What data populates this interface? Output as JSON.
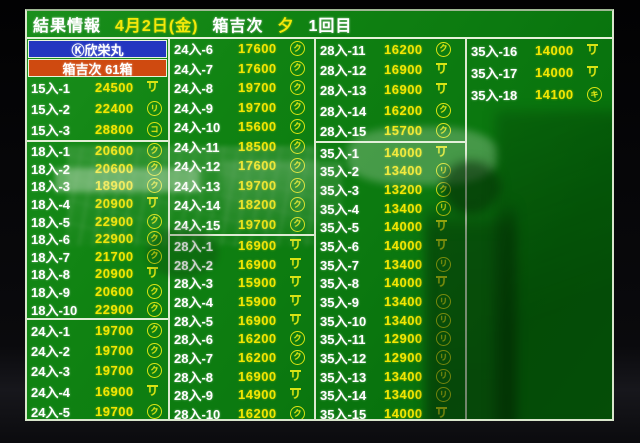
{
  "header": {
    "title": "結果情報",
    "date": "4月2日(金)",
    "vessel": "箱吉次",
    "session": "夕",
    "round": "1回目"
  },
  "banners": {
    "ship": "Ⓚ欣栄丸",
    "lot": "箱吉次 61箱"
  },
  "colors": {
    "board_green": "#0c7a10",
    "label_white": "#ffffff",
    "value_yellow": "#f2e602",
    "mark_yellow_green": "#d9e414",
    "banner_blue": "#2336c0",
    "banner_red": "#cf4a10",
    "grid_line": "#e2eed6"
  },
  "marks": {
    "circle-ku": {
      "shape": "circle",
      "glyph": "ク"
    },
    "circle-ri": {
      "shape": "circle",
      "glyph": "リ"
    },
    "circle-ko": {
      "shape": "circle",
      "glyph": "コ"
    },
    "circle-ki": {
      "shape": "circle",
      "glyph": "キ"
    },
    "bar-ri": {
      "shape": "overline",
      "glyph": "リ"
    }
  },
  "columns": [
    {
      "groups": [
        {
          "banners": true,
          "rows": [
            {
              "label": "15入-1",
              "value": "24500",
              "mark": "bar-ri"
            },
            {
              "label": "15入-2",
              "value": "22400",
              "mark": "circle-ri"
            },
            {
              "label": "15入-3",
              "value": "28800",
              "mark": "circle-ko"
            }
          ]
        },
        {
          "rows": [
            {
              "label": "18入-1",
              "value": "20600",
              "mark": "circle-ku"
            },
            {
              "label": "18入-2",
              "value": "20600",
              "mark": "circle-ku"
            },
            {
              "label": "18入-3",
              "value": "18900",
              "mark": "circle-ku"
            },
            {
              "label": "18入-4",
              "value": "20900",
              "mark": "bar-ri"
            },
            {
              "label": "18入-5",
              "value": "22900",
              "mark": "circle-ku"
            },
            {
              "label": "18入-6",
              "value": "22900",
              "mark": "circle-ku"
            },
            {
              "label": "18入-7",
              "value": "21700",
              "mark": "circle-ku"
            },
            {
              "label": "18入-8",
              "value": "20900",
              "mark": "bar-ri"
            },
            {
              "label": "18入-9",
              "value": "20600",
              "mark": "circle-ku"
            },
            {
              "label": "18入-10",
              "value": "22900",
              "mark": "circle-ku"
            }
          ]
        },
        {
          "rows": [
            {
              "label": "24入-1",
              "value": "19700",
              "mark": "circle-ku"
            },
            {
              "label": "24入-2",
              "value": "19700",
              "mark": "circle-ku"
            },
            {
              "label": "24入-3",
              "value": "19700",
              "mark": "circle-ku"
            },
            {
              "label": "24入-4",
              "value": "16900",
              "mark": "bar-ri"
            },
            {
              "label": "24入-5",
              "value": "19700",
              "mark": "circle-ku"
            }
          ]
        }
      ]
    },
    {
      "groups": [
        {
          "rows": [
            {
              "label": "24入-6",
              "value": "17600",
              "mark": "circle-ku"
            },
            {
              "label": "24入-7",
              "value": "17600",
              "mark": "circle-ku"
            },
            {
              "label": "24入-8",
              "value": "19700",
              "mark": "circle-ku"
            },
            {
              "label": "24入-9",
              "value": "19700",
              "mark": "circle-ku"
            },
            {
              "label": "24入-10",
              "value": "15600",
              "mark": "circle-ku"
            },
            {
              "label": "24入-11",
              "value": "18500",
              "mark": "circle-ku"
            },
            {
              "label": "24入-12",
              "value": "17600",
              "mark": "circle-ku"
            },
            {
              "label": "24入-13",
              "value": "19700",
              "mark": "circle-ku"
            },
            {
              "label": "24入-14",
              "value": "18200",
              "mark": "circle-ku"
            },
            {
              "label": "24入-15",
              "value": "19700",
              "mark": "circle-ku"
            }
          ]
        },
        {
          "rows": [
            {
              "label": "28入-1",
              "value": "16900",
              "mark": "bar-ri"
            },
            {
              "label": "28入-2",
              "value": "16900",
              "mark": "bar-ri"
            },
            {
              "label": "28入-3",
              "value": "15900",
              "mark": "bar-ri"
            },
            {
              "label": "28入-4",
              "value": "15900",
              "mark": "bar-ri"
            },
            {
              "label": "28入-5",
              "value": "16900",
              "mark": "bar-ri"
            },
            {
              "label": "28入-6",
              "value": "16200",
              "mark": "circle-ku"
            },
            {
              "label": "28入-7",
              "value": "16200",
              "mark": "circle-ku"
            },
            {
              "label": "28入-8",
              "value": "16900",
              "mark": "bar-ri"
            },
            {
              "label": "28入-9",
              "value": "14900",
              "mark": "bar-ri"
            },
            {
              "label": "28入-10",
              "value": "16200",
              "mark": "circle-ku"
            }
          ]
        }
      ]
    },
    {
      "groups": [
        {
          "rows": [
            {
              "label": "28入-11",
              "value": "16200",
              "mark": "circle-ku"
            },
            {
              "label": "28入-12",
              "value": "16900",
              "mark": "bar-ri"
            },
            {
              "label": "28入-13",
              "value": "16900",
              "mark": "bar-ri"
            },
            {
              "label": "28入-14",
              "value": "16200",
              "mark": "circle-ku"
            },
            {
              "label": "28入-15",
              "value": "15700",
              "mark": "circle-ku"
            }
          ]
        },
        {
          "rows": [
            {
              "label": "35入-1",
              "value": "14000",
              "mark": "bar-ri"
            },
            {
              "label": "35入-2",
              "value": "13400",
              "mark": "circle-ri"
            },
            {
              "label": "35入-3",
              "value": "13200",
              "mark": "circle-ku"
            },
            {
              "label": "35入-4",
              "value": "13400",
              "mark": "circle-ri"
            },
            {
              "label": "35入-5",
              "value": "14000",
              "mark": "bar-ri"
            },
            {
              "label": "35入-6",
              "value": "14000",
              "mark": "bar-ri"
            },
            {
              "label": "35入-7",
              "value": "13400",
              "mark": "circle-ri"
            },
            {
              "label": "35入-8",
              "value": "14000",
              "mark": "bar-ri"
            },
            {
              "label": "35入-9",
              "value": "13400",
              "mark": "circle-ri"
            },
            {
              "label": "35入-10",
              "value": "13400",
              "mark": "circle-ri"
            },
            {
              "label": "35入-11",
              "value": "12900",
              "mark": "circle-ri"
            },
            {
              "label": "35入-12",
              "value": "12900",
              "mark": "circle-ri"
            },
            {
              "label": "35入-13",
              "value": "13400",
              "mark": "circle-ri"
            },
            {
              "label": "35入-14",
              "value": "13400",
              "mark": "circle-ri"
            },
            {
              "label": "35入-15",
              "value": "14000",
              "mark": "bar-ri"
            }
          ]
        }
      ]
    },
    {
      "groups": [
        {
          "open": true,
          "rows": [
            {
              "label": "35入-16",
              "value": "14000",
              "mark": "bar-ri"
            },
            {
              "label": "35入-17",
              "value": "14000",
              "mark": "bar-ri"
            },
            {
              "label": "35入-18",
              "value": "14100",
              "mark": "circle-ki"
            }
          ]
        }
      ]
    }
  ]
}
